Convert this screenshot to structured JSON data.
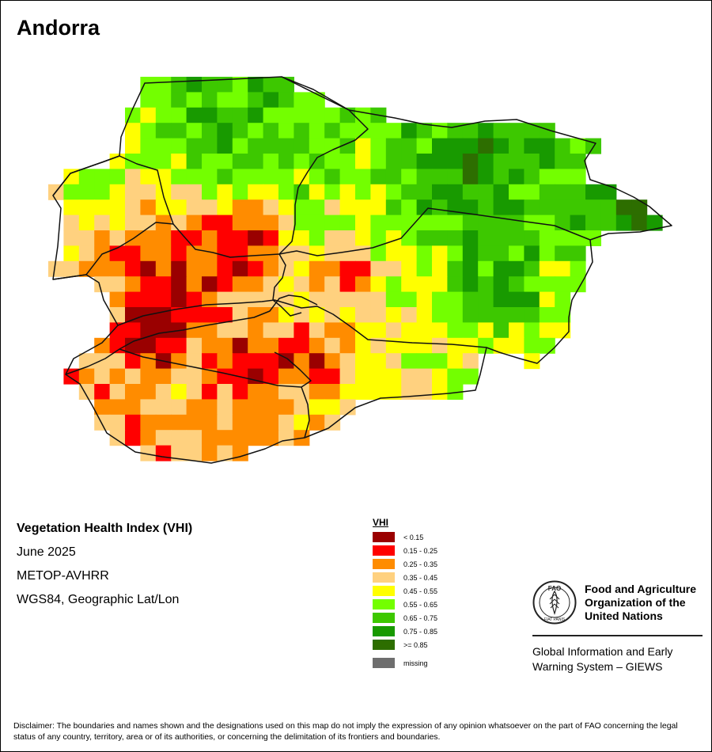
{
  "map": {
    "title": "Andorra",
    "product_title": "Vegetation Health Index (VHI)",
    "period": "June 2025",
    "sensor": "METOP-AVHRR",
    "projection": "WGS84, Geographic Lat/Lon"
  },
  "legend": {
    "title": "VHI",
    "classes": [
      {
        "label": "< 0.15",
        "color": "#9a0000"
      },
      {
        "label": "0.15 - 0.25",
        "color": "#ff0000"
      },
      {
        "label": "0.25 - 0.35",
        "color": "#ff8c00"
      },
      {
        "label": "0.35 - 0.45",
        "color": "#ffd17f"
      },
      {
        "label": "0.45 - 0.55",
        "color": "#ffff00"
      },
      {
        "label": "0.55 - 0.65",
        "color": "#73ff00"
      },
      {
        "label": "0.65 - 0.75",
        "color": "#3dc800"
      },
      {
        "label": "0.75 - 0.85",
        "color": "#189a00"
      },
      {
        "label": ">= 0.85",
        "color": "#2d6e00"
      }
    ],
    "missing": {
      "label": "missing",
      "color": "#6e6e6e"
    }
  },
  "organization": {
    "logo_text": "FAO",
    "logo_motto": "FIAT PANIS",
    "name_lines": [
      "Food and Agriculture",
      "Organization of the",
      "United Nations"
    ],
    "system_lines": [
      "Global Information and Early",
      "Warning System – GIEWS"
    ]
  },
  "disclaimer": "Disclaimer: The boundaries and names shown and the designations used on this map do not imply the expression of any opinion whatsoever on the part of FAO concerning the legal status of any country, territory, area or of its authorities, or concerning the delimitation of its frontiers and boundaries."
}
